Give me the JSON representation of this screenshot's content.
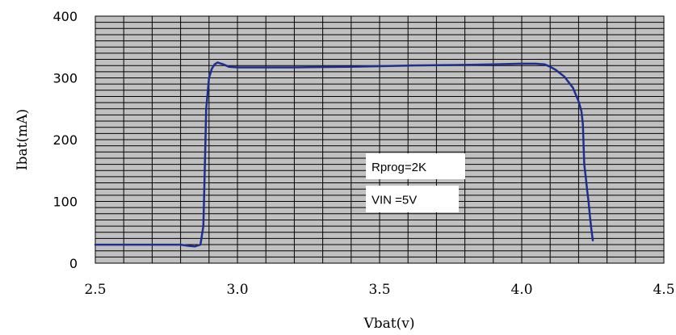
{
  "chart_data": {
    "type": "line",
    "xlabel": "Vbat(v)",
    "ylabel": "Ibat(mA)",
    "xlim": [
      2.5,
      4.5
    ],
    "ylim": [
      0,
      400
    ],
    "x_ticks": [
      "2.5",
      "3.0",
      "3.5",
      "4.0",
      "4.5"
    ],
    "y_ticks": [
      "0",
      "100",
      "200",
      "300",
      "400"
    ],
    "grid": true,
    "annotations": [
      {
        "text": "Rprog=2K"
      },
      {
        "text": "VIN =5V"
      }
    ],
    "colors": {
      "plot_bg": "#c0c0c0",
      "grid": "#000000",
      "line": "#1f2f8f",
      "label_bg": "#ffffff"
    },
    "series": [
      {
        "x": [
          2.5,
          2.6,
          2.7,
          2.8,
          2.83,
          2.85,
          2.87,
          2.88,
          2.885,
          2.89,
          2.9,
          2.91,
          2.92,
          2.93,
          2.95,
          2.97,
          3.0,
          3.2,
          3.4,
          3.6,
          3.8,
          3.9,
          4.0,
          4.05,
          4.08,
          4.1,
          4.12,
          4.15,
          4.18,
          4.2,
          4.21,
          4.215,
          4.22,
          4.225,
          4.23,
          4.235,
          4.24,
          4.245,
          4.25
        ],
        "y": [
          30,
          30,
          30,
          30,
          28,
          27,
          30,
          60,
          150,
          250,
          300,
          315,
          322,
          325,
          322,
          318,
          317,
          317,
          318,
          320,
          321,
          322,
          323,
          323,
          322,
          318,
          313,
          302,
          284,
          262,
          246,
          225,
          160,
          140,
          118,
          100,
          75,
          55,
          37
        ]
      }
    ]
  }
}
